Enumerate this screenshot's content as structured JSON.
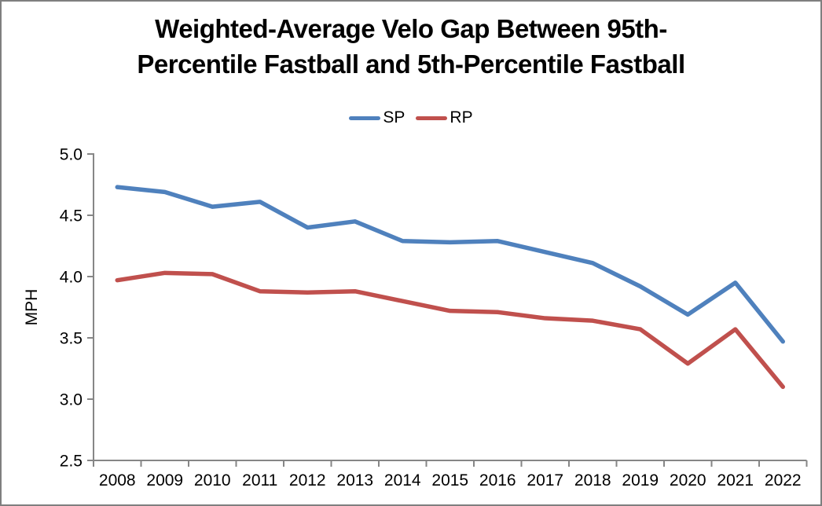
{
  "window": {
    "border_color": "#7f7f7f",
    "background": "#ffffff"
  },
  "chart_data": {
    "type": "line",
    "title": "Weighted-Average Velo Gap Between 95th-Percentile Fastball and 5th-Percentile Fastball",
    "title_lines": [
      "Weighted-Average Velo Gap Between 95th-",
      "Percentile Fastball and 5th-Percentile Fastball"
    ],
    "xlabel": "",
    "ylabel": "MPH",
    "categories": [
      "2008",
      "2009",
      "2010",
      "2011",
      "2012",
      "2013",
      "2014",
      "2015",
      "2016",
      "2017",
      "2018",
      "2019",
      "2020",
      "2021",
      "2022"
    ],
    "series": [
      {
        "name": "SP",
        "color": "#4F81BD",
        "values": [
          4.73,
          4.69,
          4.57,
          4.61,
          4.4,
          4.45,
          4.29,
          4.28,
          4.29,
          4.2,
          4.11,
          3.92,
          3.69,
          3.95,
          3.47
        ]
      },
      {
        "name": "RP",
        "color": "#C0504D",
        "values": [
          3.97,
          4.03,
          4.02,
          3.88,
          3.87,
          3.88,
          3.8,
          3.72,
          3.71,
          3.66,
          3.64,
          3.57,
          3.29,
          3.57,
          3.1
        ]
      }
    ],
    "ylim": [
      2.5,
      5.0
    ],
    "ytick_step": 0.5,
    "ytick_labels": [
      "5.0",
      "4.5",
      "4.0",
      "3.5",
      "3.0",
      "2.5"
    ],
    "grid": false,
    "legend_position": "top-center",
    "axis_color": "#868686"
  }
}
